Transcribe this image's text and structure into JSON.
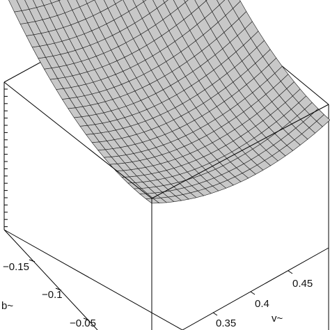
{
  "chart_data": {
    "type": "surface",
    "projection": "3d-box",
    "fill_color": "#c8c8c8",
    "mesh_color": "#1a1a1a",
    "box_color": "#000000",
    "xlabel": "b~",
    "ylabel": "v~",
    "zlabel": "",
    "x_ticks": [
      "−0.15",
      "−0.1",
      "−0.05"
    ],
    "y_ticks": [
      "0.35",
      "0.4",
      "0.45"
    ],
    "x_tick_values": [
      -0.15,
      -0.1,
      -0.05
    ],
    "y_tick_values": [
      0.35,
      0.4,
      0.45
    ],
    "xlim": [
      -0.18,
      -0.02
    ],
    "ylim": [
      0.33,
      0.48
    ],
    "grid_n": 24,
    "shape": "bowl, minimum near rear-center corner, edges curving upward"
  }
}
